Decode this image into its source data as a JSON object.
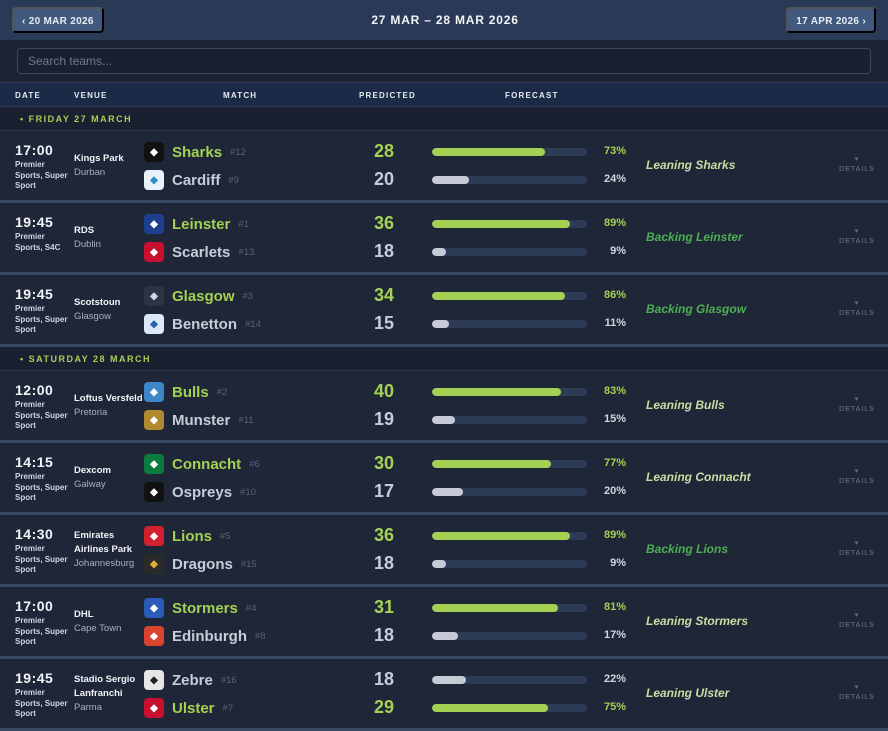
{
  "header": {
    "prev_label": "‹ 20 MAR 2026",
    "title": "27 MAR – 28 MAR 2026",
    "next_label": "17 APR 2026 ›"
  },
  "search": {
    "placeholder": "Search teams..."
  },
  "columns": {
    "date": "DATE",
    "venue": "VENUE",
    "match": "MATCH",
    "predicted": "PREDICTED",
    "forecast": "FORECAST"
  },
  "details_label": "DETAILS",
  "colors": {
    "accent": "#a5d152",
    "backing": "#4caf50",
    "leaning": "#c9dca2"
  },
  "days": [
    {
      "label": "• FRIDAY 27 MARCH",
      "matches": [
        {
          "time": "17:00",
          "tv": "Premier Sports, Super Sport",
          "venue": "Kings Park",
          "city": "Durban",
          "verdict": "Leaning Sharks",
          "type": "lean",
          "teams": [
            {
              "name": "Sharks",
              "rank": "#12",
              "score": "28",
              "pct": 73,
              "pct_label": "73%",
              "color": "#111",
              "fg": "#fff",
              "win": true
            },
            {
              "name": "Cardiff",
              "rank": "#9",
              "score": "20",
              "pct": 24,
              "pct_label": "24%",
              "color": "#e8f2f8",
              "fg": "#2a8fc9",
              "win": false
            }
          ]
        },
        {
          "time": "19:45",
          "tv": "Premier Sports, S4C",
          "venue": "RDS",
          "city": "Dublin",
          "verdict": "Backing Leinster",
          "type": "back",
          "teams": [
            {
              "name": "Leinster",
              "rank": "#1",
              "score": "36",
              "pct": 89,
              "pct_label": "89%",
              "color": "#1d3f8f",
              "fg": "#fff",
              "win": true
            },
            {
              "name": "Scarlets",
              "rank": "#13",
              "score": "18",
              "pct": 9,
              "pct_label": "9%",
              "color": "#c8102e",
              "fg": "#fff",
              "win": false
            }
          ]
        },
        {
          "time": "19:45",
          "tv": "Premier Sports, Super Sport",
          "venue": "Scotstoun",
          "city": "Glasgow",
          "verdict": "Backing Glasgow",
          "type": "back",
          "teams": [
            {
              "name": "Glasgow",
              "rank": "#3",
              "score": "34",
              "pct": 86,
              "pct_label": "86%",
              "color": "#2b3344",
              "fg": "#cfd6e2",
              "win": true
            },
            {
              "name": "Benetton",
              "rank": "#14",
              "score": "15",
              "pct": 11,
              "pct_label": "11%",
              "color": "#dbe8f7",
              "fg": "#2b63b5",
              "win": false
            }
          ]
        }
      ]
    },
    {
      "label": "• SATURDAY 28 MARCH",
      "matches": [
        {
          "time": "12:00",
          "tv": "Premier Sports, Super Sport",
          "venue": "Loftus Versfeld",
          "city": "Pretoria",
          "verdict": "Leaning Bulls",
          "type": "lean",
          "teams": [
            {
              "name": "Bulls",
              "rank": "#2",
              "score": "40",
              "pct": 83,
              "pct_label": "83%",
              "color": "#3f86c8",
              "fg": "#fff",
              "win": true
            },
            {
              "name": "Munster",
              "rank": "#11",
              "score": "19",
              "pct": 15,
              "pct_label": "15%",
              "color": "#b08a2e",
              "fg": "#fff",
              "win": false
            }
          ]
        },
        {
          "time": "14:15",
          "tv": "Premier Sports, Super Sport",
          "venue": "Dexcom",
          "city": "Galway",
          "verdict": "Leaning Connacht",
          "type": "lean",
          "teams": [
            {
              "name": "Connacht",
              "rank": "#6",
              "score": "30",
              "pct": 77,
              "pct_label": "77%",
              "color": "#0d7a3e",
              "fg": "#fff",
              "win": true
            },
            {
              "name": "Ospreys",
              "rank": "#10",
              "score": "17",
              "pct": 20,
              "pct_label": "20%",
              "color": "#111",
              "fg": "#fff",
              "win": false
            }
          ]
        },
        {
          "time": "14:30",
          "tv": "Premier Sports, Super Sport",
          "venue": "Emirates Airlines Park",
          "city": "Johannesburg",
          "verdict": "Backing Lions",
          "type": "back",
          "teams": [
            {
              "name": "Lions",
              "rank": "#5",
              "score": "36",
              "pct": 89,
              "pct_label": "89%",
              "color": "#d3202f",
              "fg": "#fff",
              "win": true
            },
            {
              "name": "Dragons",
              "rank": "#15",
              "score": "18",
              "pct": 9,
              "pct_label": "9%",
              "color": "#2a2a2a",
              "fg": "#e0b030",
              "win": false
            }
          ]
        },
        {
          "time": "17:00",
          "tv": "Premier Sports, Super Sport",
          "venue": "DHL",
          "city": "Cape Town",
          "verdict": "Leaning Stormers",
          "type": "lean",
          "teams": [
            {
              "name": "Stormers",
              "rank": "#4",
              "score": "31",
              "pct": 81,
              "pct_label": "81%",
              "color": "#2a5bb8",
              "fg": "#fff",
              "win": true
            },
            {
              "name": "Edinburgh",
              "rank": "#8",
              "score": "18",
              "pct": 17,
              "pct_label": "17%",
              "color": "#d9432f",
              "fg": "#fff",
              "win": false
            }
          ]
        },
        {
          "time": "19:45",
          "tv": "Premier Sports, Super Sport",
          "venue": "Stadio Sergio Lanfranchi",
          "city": "Parma",
          "verdict": "Leaning Ulster",
          "type": "lean",
          "teams": [
            {
              "name": "Zebre",
              "rank": "#16",
              "score": "18",
              "pct": 22,
              "pct_label": "22%",
              "color": "#e6e6e6",
              "fg": "#222",
              "win": false
            },
            {
              "name": "Ulster",
              "rank": "#7",
              "score": "29",
              "pct": 75,
              "pct_label": "75%",
              "color": "#c8102e",
              "fg": "#fff",
              "win": true
            }
          ]
        }
      ]
    }
  ]
}
